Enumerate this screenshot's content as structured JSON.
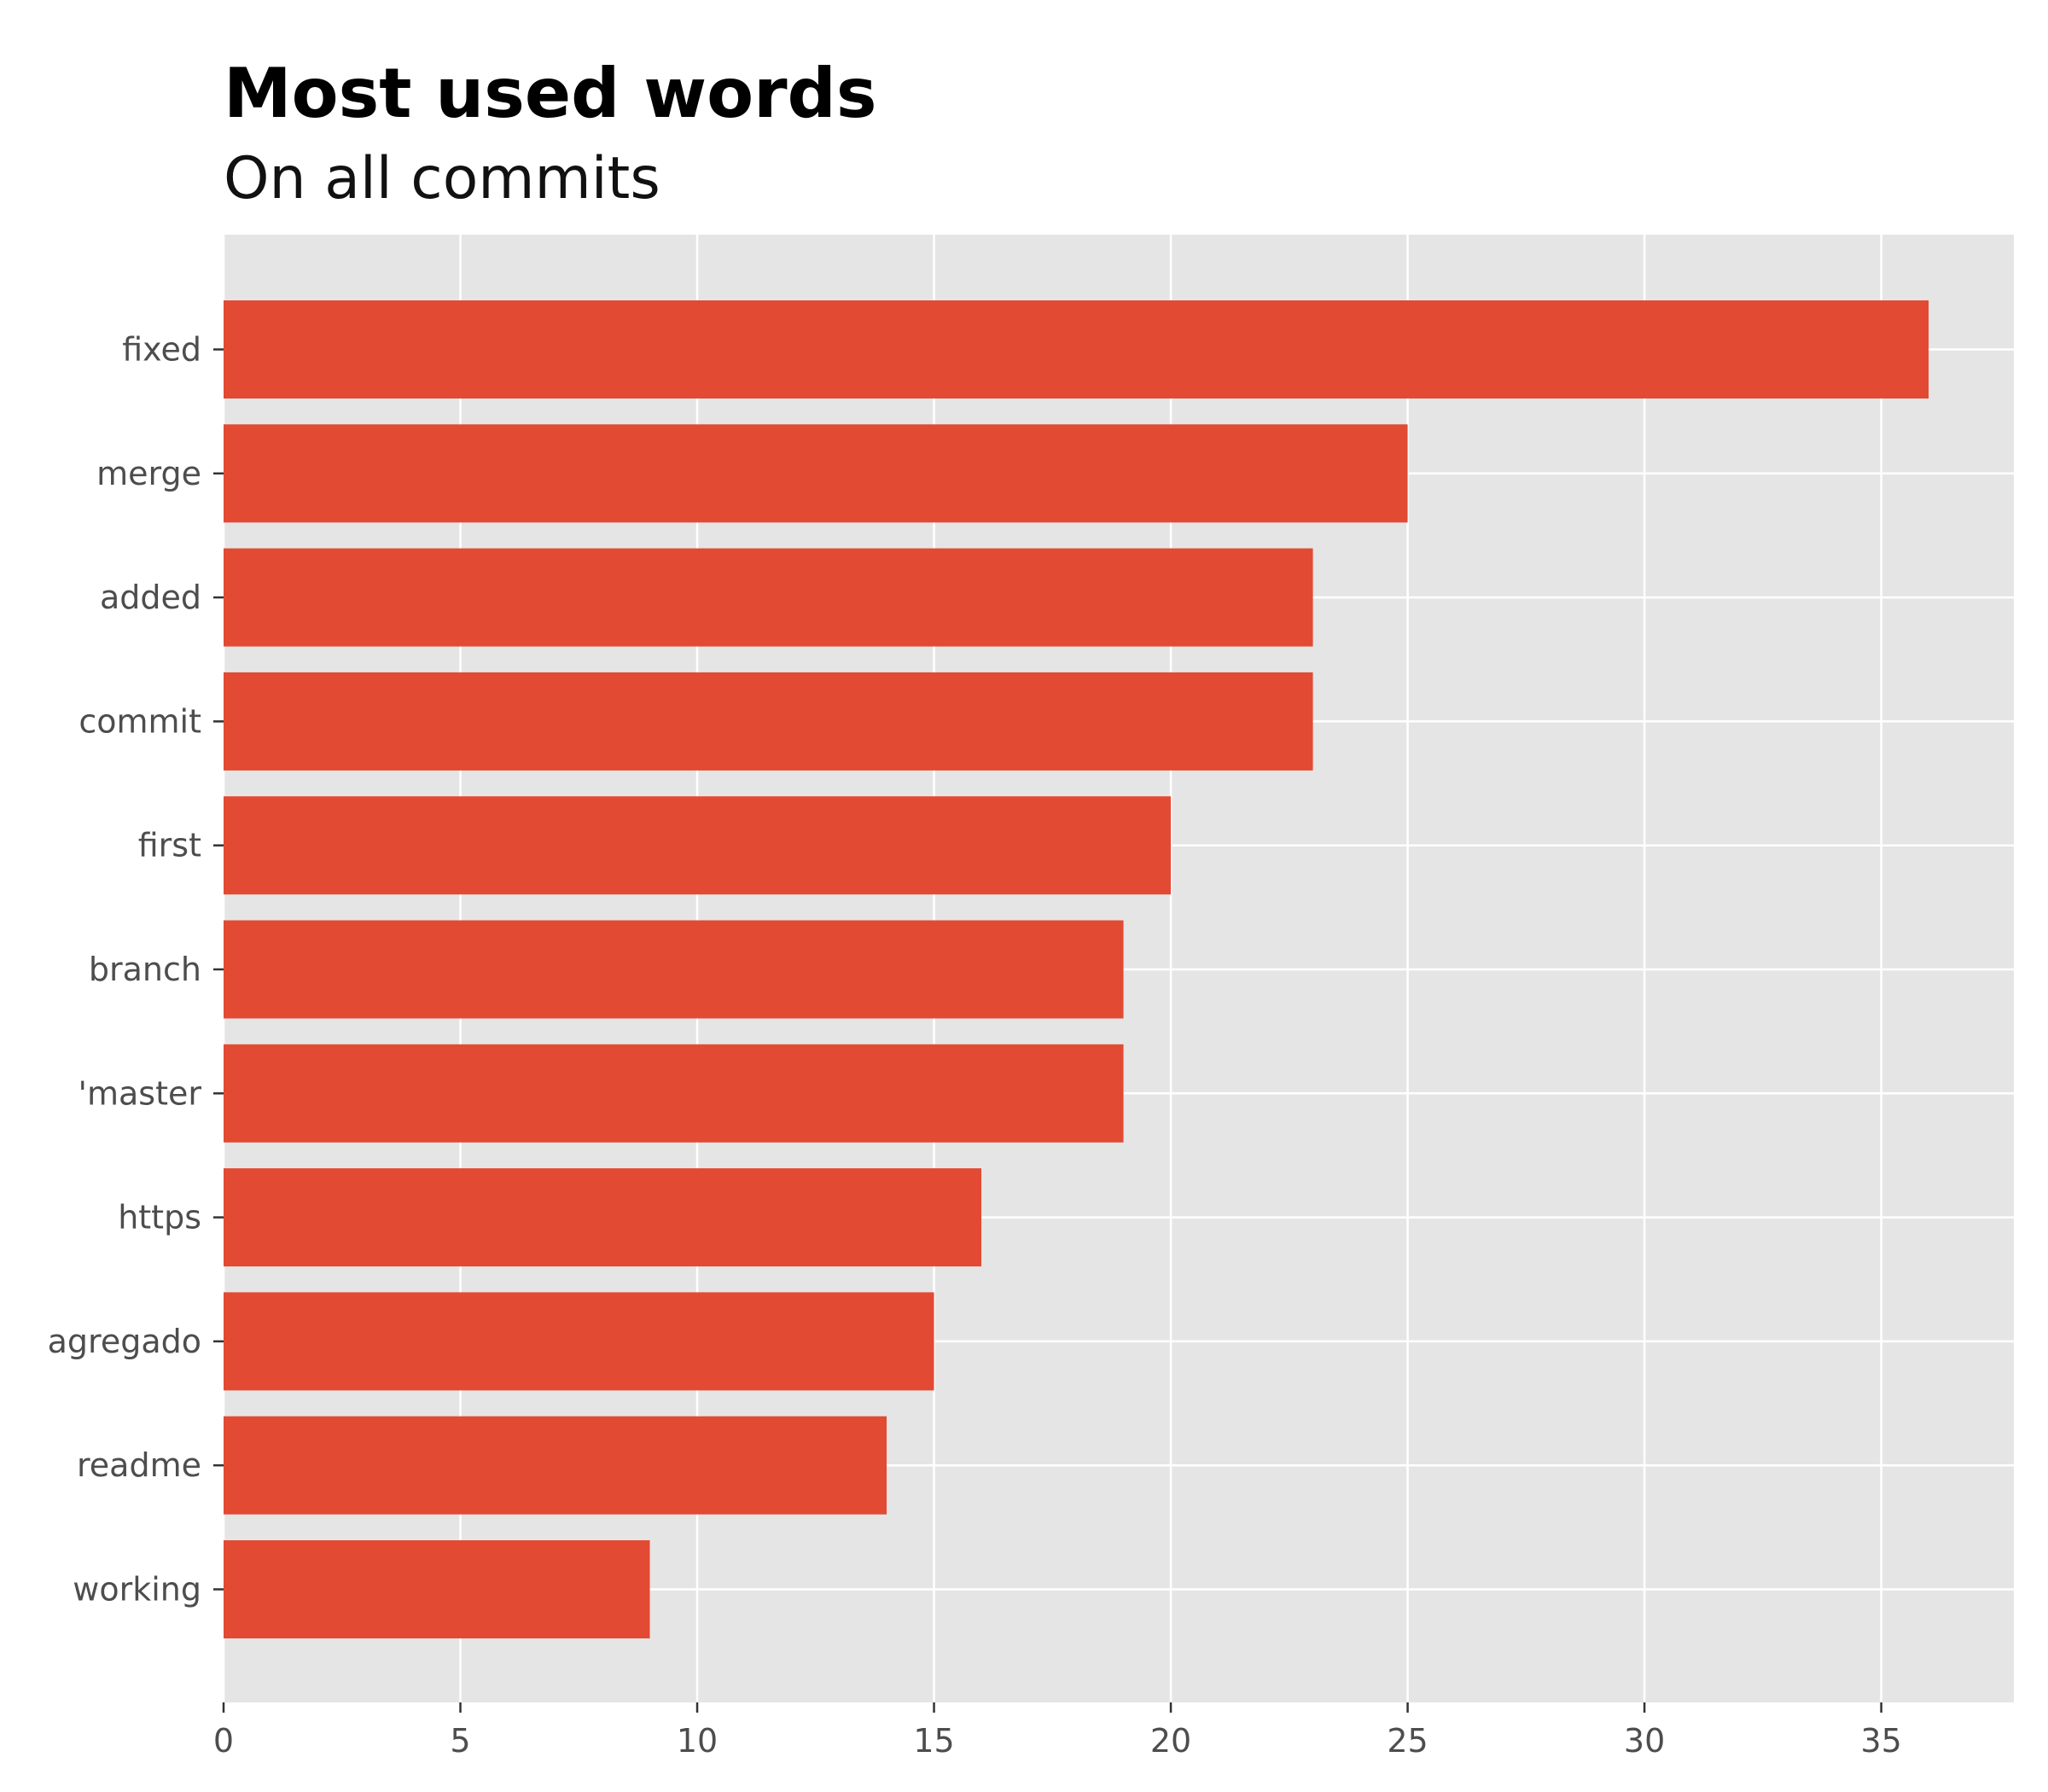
{
  "chart_data": {
    "type": "bar",
    "orientation": "horizontal",
    "title": "Most used words",
    "subtitle": "On all commits",
    "xlabel": "",
    "ylabel": "",
    "categories": [
      "fixed",
      "merge",
      "added",
      "commit",
      "first",
      "branch",
      "'master",
      "https",
      "agregado",
      "readme",
      "working"
    ],
    "values": [
      36,
      25,
      23,
      23,
      20,
      19,
      19,
      16,
      15,
      14,
      9
    ],
    "xlim": [
      0,
      37.8
    ],
    "xticks": [
      0,
      5,
      10,
      15,
      20,
      25,
      30,
      35
    ],
    "grid": true,
    "legend": "none",
    "colors": {
      "bar": "#e24a33",
      "panel": "#e5e5e5",
      "grid": "#ffffff"
    }
  }
}
